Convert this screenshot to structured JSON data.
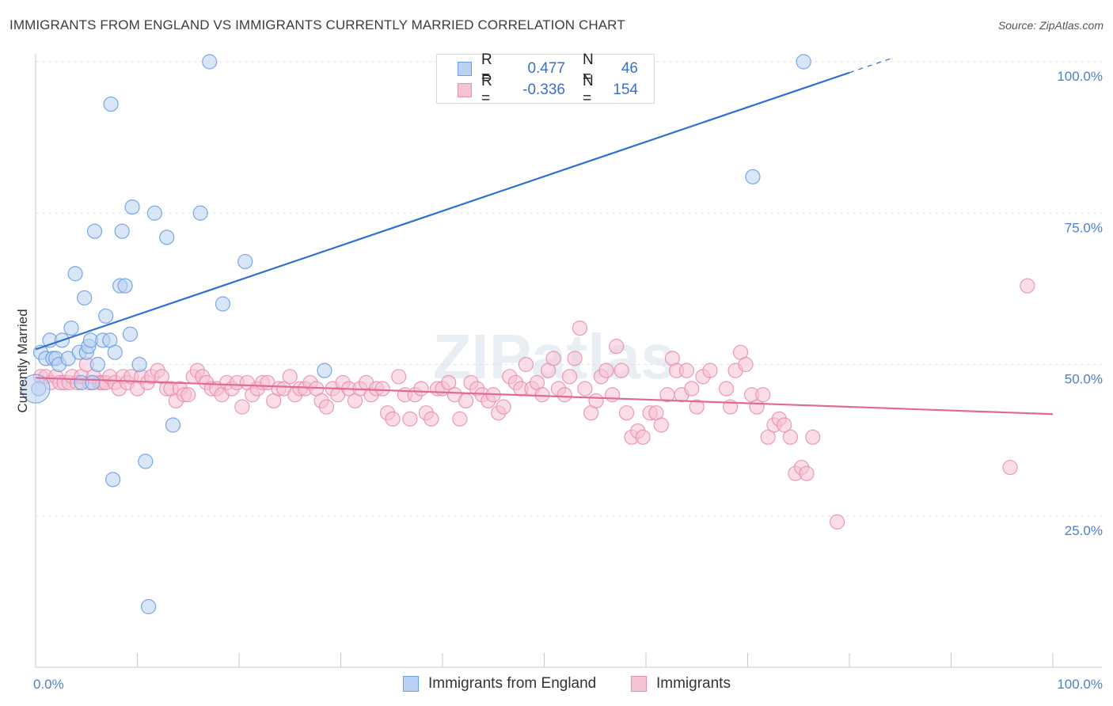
{
  "title": "IMMIGRANTS FROM ENGLAND VS IMMIGRANTS CURRENTLY MARRIED CORRELATION CHART",
  "source": "Source: ZipAtlas.com",
  "watermark": "ZIPatlas",
  "legend": {
    "rows": [
      {
        "r_label": "R =",
        "r_value": "0.477",
        "n_label": "N =",
        "n_value": "46"
      },
      {
        "r_label": "R =",
        "r_value": "-0.336",
        "n_label": "N =",
        "n_value": "154"
      }
    ]
  },
  "bottom_legend": [
    "Immigrants from England",
    "Immigrants"
  ],
  "chart_data": {
    "type": "scatter",
    "title": "IMMIGRANTS FROM ENGLAND VS IMMIGRANTS CURRENTLY MARRIED CORRELATION CHART",
    "xlabel": "",
    "ylabel": "Currently Married",
    "xlim": [
      0,
      100
    ],
    "ylim": [
      0,
      100
    ],
    "x_tick_labels": [
      "0.0%",
      "100.0%"
    ],
    "y_ticks": [
      25,
      50,
      75,
      100
    ],
    "y_tick_labels": [
      "25.0%",
      "50.0%",
      "75.0%",
      "100.0%"
    ],
    "grid": true,
    "series": [
      {
        "name": "Immigrants from England",
        "color": "#6a9ee6",
        "fill": "#b9d1f3",
        "r": 0.477,
        "n": 46,
        "trend": {
          "x0": 0,
          "y0": 52.5,
          "x1": 80,
          "y1": 98.2,
          "dash_to_x": 84
        },
        "points": [
          [
            0.3,
            46
          ],
          [
            0.5,
            52
          ],
          [
            1.0,
            51
          ],
          [
            1.4,
            54
          ],
          [
            1.7,
            51
          ],
          [
            2.0,
            51
          ],
          [
            2.3,
            50
          ],
          [
            2.6,
            54
          ],
          [
            3.2,
            51
          ],
          [
            3.5,
            56
          ],
          [
            3.9,
            65
          ],
          [
            4.3,
            52
          ],
          [
            4.5,
            47
          ],
          [
            4.8,
            61
          ],
          [
            5.0,
            52
          ],
          [
            5.2,
            53
          ],
          [
            5.4,
            54
          ],
          [
            5.6,
            47
          ],
          [
            5.8,
            72
          ],
          [
            6.1,
            50
          ],
          [
            6.6,
            54
          ],
          [
            6.9,
            58
          ],
          [
            7.3,
            54
          ],
          [
            7.4,
            93
          ],
          [
            7.6,
            31
          ],
          [
            7.8,
            52
          ],
          [
            8.3,
            63
          ],
          [
            8.5,
            72
          ],
          [
            8.8,
            63
          ],
          [
            9.3,
            55
          ],
          [
            9.5,
            76
          ],
          [
            10.2,
            50
          ],
          [
            10.8,
            34
          ],
          [
            11.1,
            10
          ],
          [
            11.7,
            75
          ],
          [
            12.9,
            71
          ],
          [
            13.5,
            40
          ],
          [
            16.2,
            75
          ],
          [
            17.1,
            100
          ],
          [
            18.4,
            60
          ],
          [
            20.6,
            67
          ],
          [
            28.4,
            49
          ],
          [
            70.5,
            81
          ],
          [
            75.5,
            100
          ]
        ]
      },
      {
        "name": "Immigrants",
        "color": "#e98fb0",
        "fill": "#f5c1d4",
        "r": -0.336,
        "n": 154,
        "trend": {
          "x0": 0,
          "y0": 47.8,
          "x1": 100,
          "y1": 41.8
        },
        "points": [
          [
            0.5,
            48
          ],
          [
            1.0,
            48
          ],
          [
            1.5,
            47
          ],
          [
            2.0,
            48
          ],
          [
            2.4,
            47
          ],
          [
            2.8,
            47
          ],
          [
            3.3,
            47
          ],
          [
            3.6,
            48
          ],
          [
            4.1,
            47
          ],
          [
            4.5,
            48
          ],
          [
            5.0,
            50
          ],
          [
            5.3,
            47
          ],
          [
            5.7,
            48
          ],
          [
            6.3,
            47
          ],
          [
            6.6,
            47
          ],
          [
            6.9,
            47
          ],
          [
            7.3,
            48
          ],
          [
            7.8,
            47
          ],
          [
            8.2,
            46
          ],
          [
            8.6,
            48
          ],
          [
            9.0,
            47
          ],
          [
            9.4,
            48
          ],
          [
            10.0,
            46
          ],
          [
            10.4,
            48
          ],
          [
            11.0,
            47
          ],
          [
            11.4,
            48
          ],
          [
            12.0,
            49
          ],
          [
            12.4,
            48
          ],
          [
            12.9,
            46
          ],
          [
            13.3,
            46
          ],
          [
            13.8,
            44
          ],
          [
            14.2,
            46
          ],
          [
            14.6,
            45
          ],
          [
            15.0,
            45
          ],
          [
            15.5,
            48
          ],
          [
            15.9,
            49
          ],
          [
            16.4,
            48
          ],
          [
            16.8,
            47
          ],
          [
            17.3,
            46
          ],
          [
            17.8,
            46
          ],
          [
            18.3,
            45
          ],
          [
            18.8,
            47
          ],
          [
            19.3,
            46
          ],
          [
            19.8,
            47
          ],
          [
            20.3,
            43
          ],
          [
            20.8,
            47
          ],
          [
            21.3,
            45
          ],
          [
            21.8,
            46
          ],
          [
            22.3,
            47
          ],
          [
            22.8,
            47
          ],
          [
            23.4,
            44
          ],
          [
            23.9,
            46
          ],
          [
            24.4,
            46
          ],
          [
            25.0,
            48
          ],
          [
            25.5,
            45
          ],
          [
            26.0,
            46
          ],
          [
            26.5,
            46
          ],
          [
            27.0,
            47
          ],
          [
            27.6,
            46
          ],
          [
            28.1,
            44
          ],
          [
            28.6,
            43
          ],
          [
            29.2,
            46
          ],
          [
            29.7,
            45
          ],
          [
            30.2,
            47
          ],
          [
            30.8,
            46
          ],
          [
            31.4,
            44
          ],
          [
            31.9,
            46
          ],
          [
            32.5,
            47
          ],
          [
            33.0,
            45
          ],
          [
            33.5,
            46
          ],
          [
            34.1,
            46
          ],
          [
            34.6,
            42
          ],
          [
            35.1,
            41
          ],
          [
            35.7,
            48
          ],
          [
            36.3,
            45
          ],
          [
            36.8,
            41
          ],
          [
            37.3,
            45
          ],
          [
            37.9,
            46
          ],
          [
            38.4,
            42
          ],
          [
            38.9,
            41
          ],
          [
            39.5,
            46
          ],
          [
            40.0,
            46
          ],
          [
            40.6,
            47
          ],
          [
            41.2,
            45
          ],
          [
            41.7,
            41
          ],
          [
            42.3,
            44
          ],
          [
            42.8,
            47
          ],
          [
            43.4,
            46
          ],
          [
            43.9,
            45
          ],
          [
            44.5,
            44
          ],
          [
            45.0,
            45
          ],
          [
            45.5,
            42
          ],
          [
            46.0,
            43
          ],
          [
            46.6,
            48
          ],
          [
            47.2,
            47
          ],
          [
            47.7,
            46
          ],
          [
            48.2,
            50
          ],
          [
            48.8,
            46
          ],
          [
            49.3,
            47
          ],
          [
            49.8,
            45
          ],
          [
            50.4,
            49
          ],
          [
            50.9,
            51
          ],
          [
            51.4,
            46
          ],
          [
            52.0,
            45
          ],
          [
            52.5,
            48
          ],
          [
            53.0,
            51
          ],
          [
            53.5,
            56
          ],
          [
            54.0,
            46
          ],
          [
            54.6,
            42
          ],
          [
            55.1,
            44
          ],
          [
            55.6,
            48
          ],
          [
            56.1,
            49
          ],
          [
            56.7,
            45
          ],
          [
            57.1,
            53
          ],
          [
            57.6,
            49
          ],
          [
            58.1,
            42
          ],
          [
            58.6,
            38
          ],
          [
            59.2,
            39
          ],
          [
            59.7,
            38
          ],
          [
            60.4,
            42
          ],
          [
            61.0,
            42
          ],
          [
            61.5,
            40
          ],
          [
            62.1,
            45
          ],
          [
            62.6,
            51
          ],
          [
            63.0,
            49
          ],
          [
            63.5,
            45
          ],
          [
            64.0,
            49
          ],
          [
            64.5,
            46
          ],
          [
            65.0,
            43
          ],
          [
            65.6,
            48
          ],
          [
            66.3,
            49
          ],
          [
            67.9,
            46
          ],
          [
            68.3,
            43
          ],
          [
            68.8,
            49
          ],
          [
            69.3,
            52
          ],
          [
            69.8,
            50
          ],
          [
            70.4,
            45
          ],
          [
            70.9,
            43
          ],
          [
            71.5,
            45
          ],
          [
            72.0,
            38
          ],
          [
            72.6,
            40
          ],
          [
            73.1,
            41
          ],
          [
            73.6,
            40
          ],
          [
            74.2,
            38
          ],
          [
            74.7,
            32
          ],
          [
            75.3,
            33
          ],
          [
            75.8,
            32
          ],
          [
            76.4,
            38
          ],
          [
            78.8,
            24
          ],
          [
            95.8,
            33
          ],
          [
            97.5,
            63
          ]
        ]
      }
    ]
  }
}
